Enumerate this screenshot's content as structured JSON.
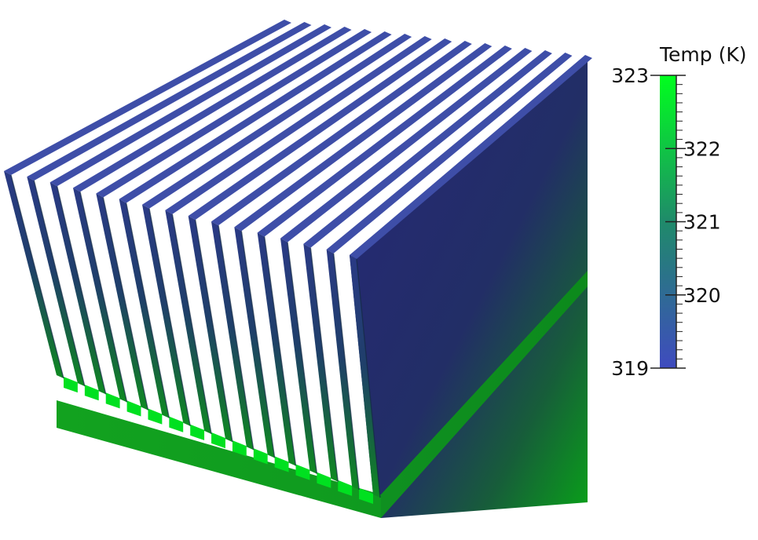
{
  "colorbar": {
    "title": "Temp (K)",
    "min": 319,
    "max": 323,
    "ticks": [
      {
        "value": 323,
        "label": "323"
      },
      {
        "value": 322,
        "label": "322"
      },
      {
        "value": 321,
        "label": "321"
      },
      {
        "value": 320,
        "label": "320"
      },
      {
        "value": 319,
        "label": "319"
      }
    ],
    "color_low": "#3f4bbf",
    "color_high": "#00ff1e",
    "minor_tick_count": 32
  },
  "scene": {
    "object": "heat sink",
    "fin_count": 16,
    "colors": {
      "fin_top": "#3e4ea8",
      "fin_front_top": "#293a78",
      "fin_front_bottom": "#0e7f22",
      "base_channel": "#00e020",
      "base_front": "#11a91f",
      "side_top": "#262a72",
      "side_bottom": "#0d8a1c"
    }
  }
}
